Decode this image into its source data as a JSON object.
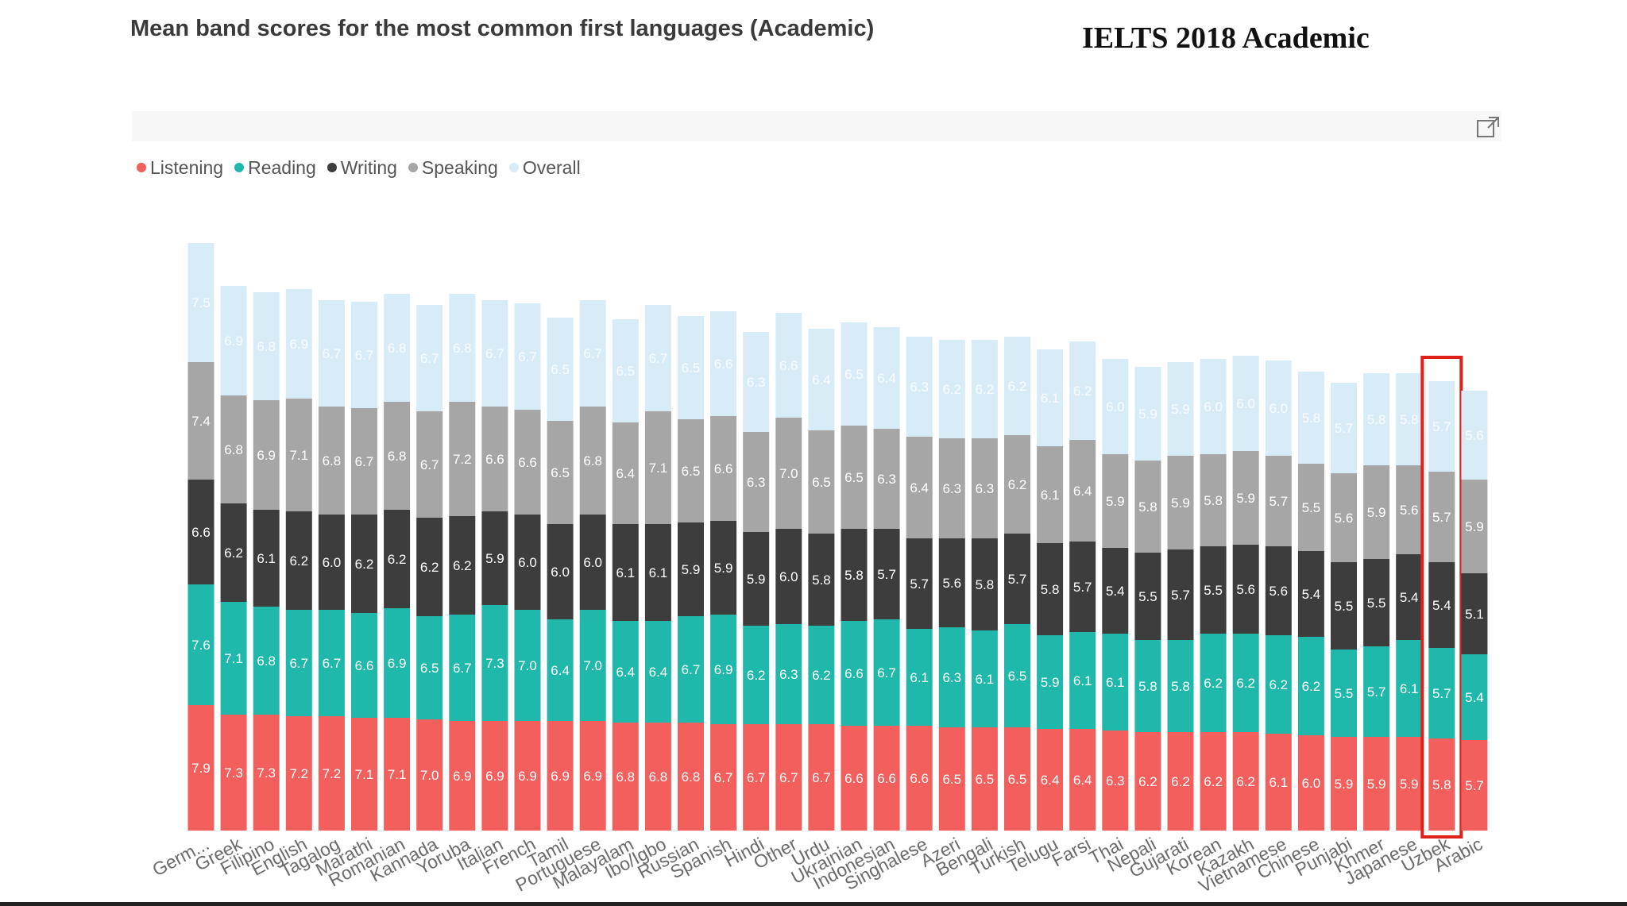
{
  "header": {
    "chart_title": "Mean band scores for the most common first languages (Academic)",
    "overlay_title": "IELTS 2018  Academic"
  },
  "toolbar": {
    "focus_icon": "focus-mode-icon"
  },
  "colors": {
    "Listening": "#f25f5c",
    "Reading": "#1fb8aa",
    "Writing": "#3d3d3d",
    "Speaking": "#a6a6a6",
    "Overall": "#d8ecf7",
    "highlight": "#e0201b"
  },
  "highlight": {
    "category": "Uzbek"
  },
  "chart_data": {
    "type": "bar",
    "stacked": true,
    "legend_position": "top-left",
    "grid": false,
    "categories": [
      "Germ...",
      "Greek",
      "Filipino",
      "English",
      "Tagalog",
      "Marathi",
      "Romanian",
      "Kannada",
      "Yoruba",
      "Italian",
      "French",
      "Tamil",
      "Portuguese",
      "Malayalam",
      "Ibo/Igbo",
      "Russian",
      "Spanish",
      "Hindi",
      "Other",
      "Urdu",
      "Ukrainian",
      "Indonesian",
      "Singhalese",
      "Azeri",
      "Bengali",
      "Turkish",
      "Telugu",
      "Farsi",
      "Thai",
      "Nepali",
      "Gujarati",
      "Korean",
      "Kazakh",
      "Vietnamese",
      "Chinese",
      "Punjabi",
      "Khmer",
      "Japanese",
      "Uzbek",
      "Arabic"
    ],
    "series": [
      {
        "name": "Listening",
        "values": [
          7.9,
          7.3,
          7.3,
          7.2,
          7.2,
          7.1,
          7.1,
          7.0,
          6.9,
          6.9,
          6.9,
          6.9,
          6.9,
          6.8,
          6.8,
          6.8,
          6.7,
          6.7,
          6.7,
          6.7,
          6.6,
          6.6,
          6.6,
          6.5,
          6.5,
          6.5,
          6.4,
          6.4,
          6.3,
          6.2,
          6.2,
          6.2,
          6.2,
          6.1,
          6.0,
          5.9,
          5.9,
          5.9,
          5.8,
          5.7
        ]
      },
      {
        "name": "Reading",
        "values": [
          7.6,
          7.1,
          6.8,
          6.7,
          6.7,
          6.6,
          6.9,
          6.5,
          6.7,
          7.3,
          7.0,
          6.4,
          7.0,
          6.4,
          6.4,
          6.7,
          6.9,
          6.2,
          6.3,
          6.2,
          6.6,
          6.7,
          6.1,
          6.3,
          6.1,
          6.5,
          5.9,
          6.1,
          6.1,
          5.8,
          5.8,
          6.2,
          6.2,
          6.2,
          6.2,
          5.5,
          5.7,
          6.1,
          5.7,
          5.4
        ]
      },
      {
        "name": "Writing",
        "values": [
          6.6,
          6.2,
          6.1,
          6.2,
          6.0,
          6.2,
          6.2,
          6.2,
          6.2,
          5.9,
          6.0,
          6.0,
          6.0,
          6.1,
          6.1,
          5.9,
          5.9,
          5.9,
          6.0,
          5.8,
          5.8,
          5.7,
          5.7,
          5.6,
          5.8,
          5.7,
          5.8,
          5.7,
          5.4,
          5.5,
          5.7,
          5.5,
          5.6,
          5.6,
          5.4,
          5.5,
          5.5,
          5.4,
          5.4,
          5.1
        ]
      },
      {
        "name": "Speaking",
        "values": [
          7.4,
          6.8,
          6.9,
          7.1,
          6.8,
          6.7,
          6.8,
          6.7,
          7.2,
          6.6,
          6.6,
          6.5,
          6.8,
          6.4,
          7.1,
          6.5,
          6.6,
          6.3,
          7.0,
          6.5,
          6.5,
          6.3,
          6.4,
          6.3,
          6.3,
          6.2,
          6.1,
          6.4,
          5.9,
          5.8,
          5.9,
          5.8,
          5.9,
          5.7,
          5.5,
          5.6,
          5.9,
          5.6,
          5.7,
          5.9
        ]
      },
      {
        "name": "Overall",
        "values": [
          7.5,
          6.9,
          6.8,
          6.9,
          6.7,
          6.7,
          6.8,
          6.7,
          6.8,
          6.7,
          6.7,
          6.5,
          6.7,
          6.5,
          6.7,
          6.5,
          6.6,
          6.3,
          6.6,
          6.4,
          6.5,
          6.4,
          6.3,
          6.2,
          6.2,
          6.2,
          6.1,
          6.2,
          6.0,
          5.9,
          5.9,
          6.0,
          6.0,
          6.0,
          5.8,
          5.7,
          5.8,
          5.8,
          5.7,
          5.6
        ]
      }
    ]
  }
}
